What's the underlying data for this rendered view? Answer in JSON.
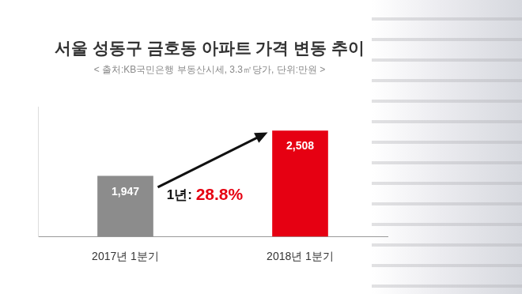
{
  "chart_data": {
    "type": "bar",
    "title": "서울 성동구 금호동 아파트 가격 변동 추이",
    "subtitle": "< 출처:KB국민은행 부동산시세, 3.3㎡당가, 단위:만원 >",
    "annotation": "1년: 28.8%",
    "categories": [
      "2017년 1분기",
      "2018년 1분기"
    ],
    "values": [
      1947,
      2508
    ],
    "value_labels": [
      "1,947",
      "2,508"
    ],
    "colors": [
      "#8c8c8c",
      "#e60012"
    ],
    "ylim": [
      1200,
      2800
    ],
    "yticks": [
      1200,
      2800
    ],
    "grid": false,
    "data_labels": true,
    "tick_labels": "x"
  }
}
